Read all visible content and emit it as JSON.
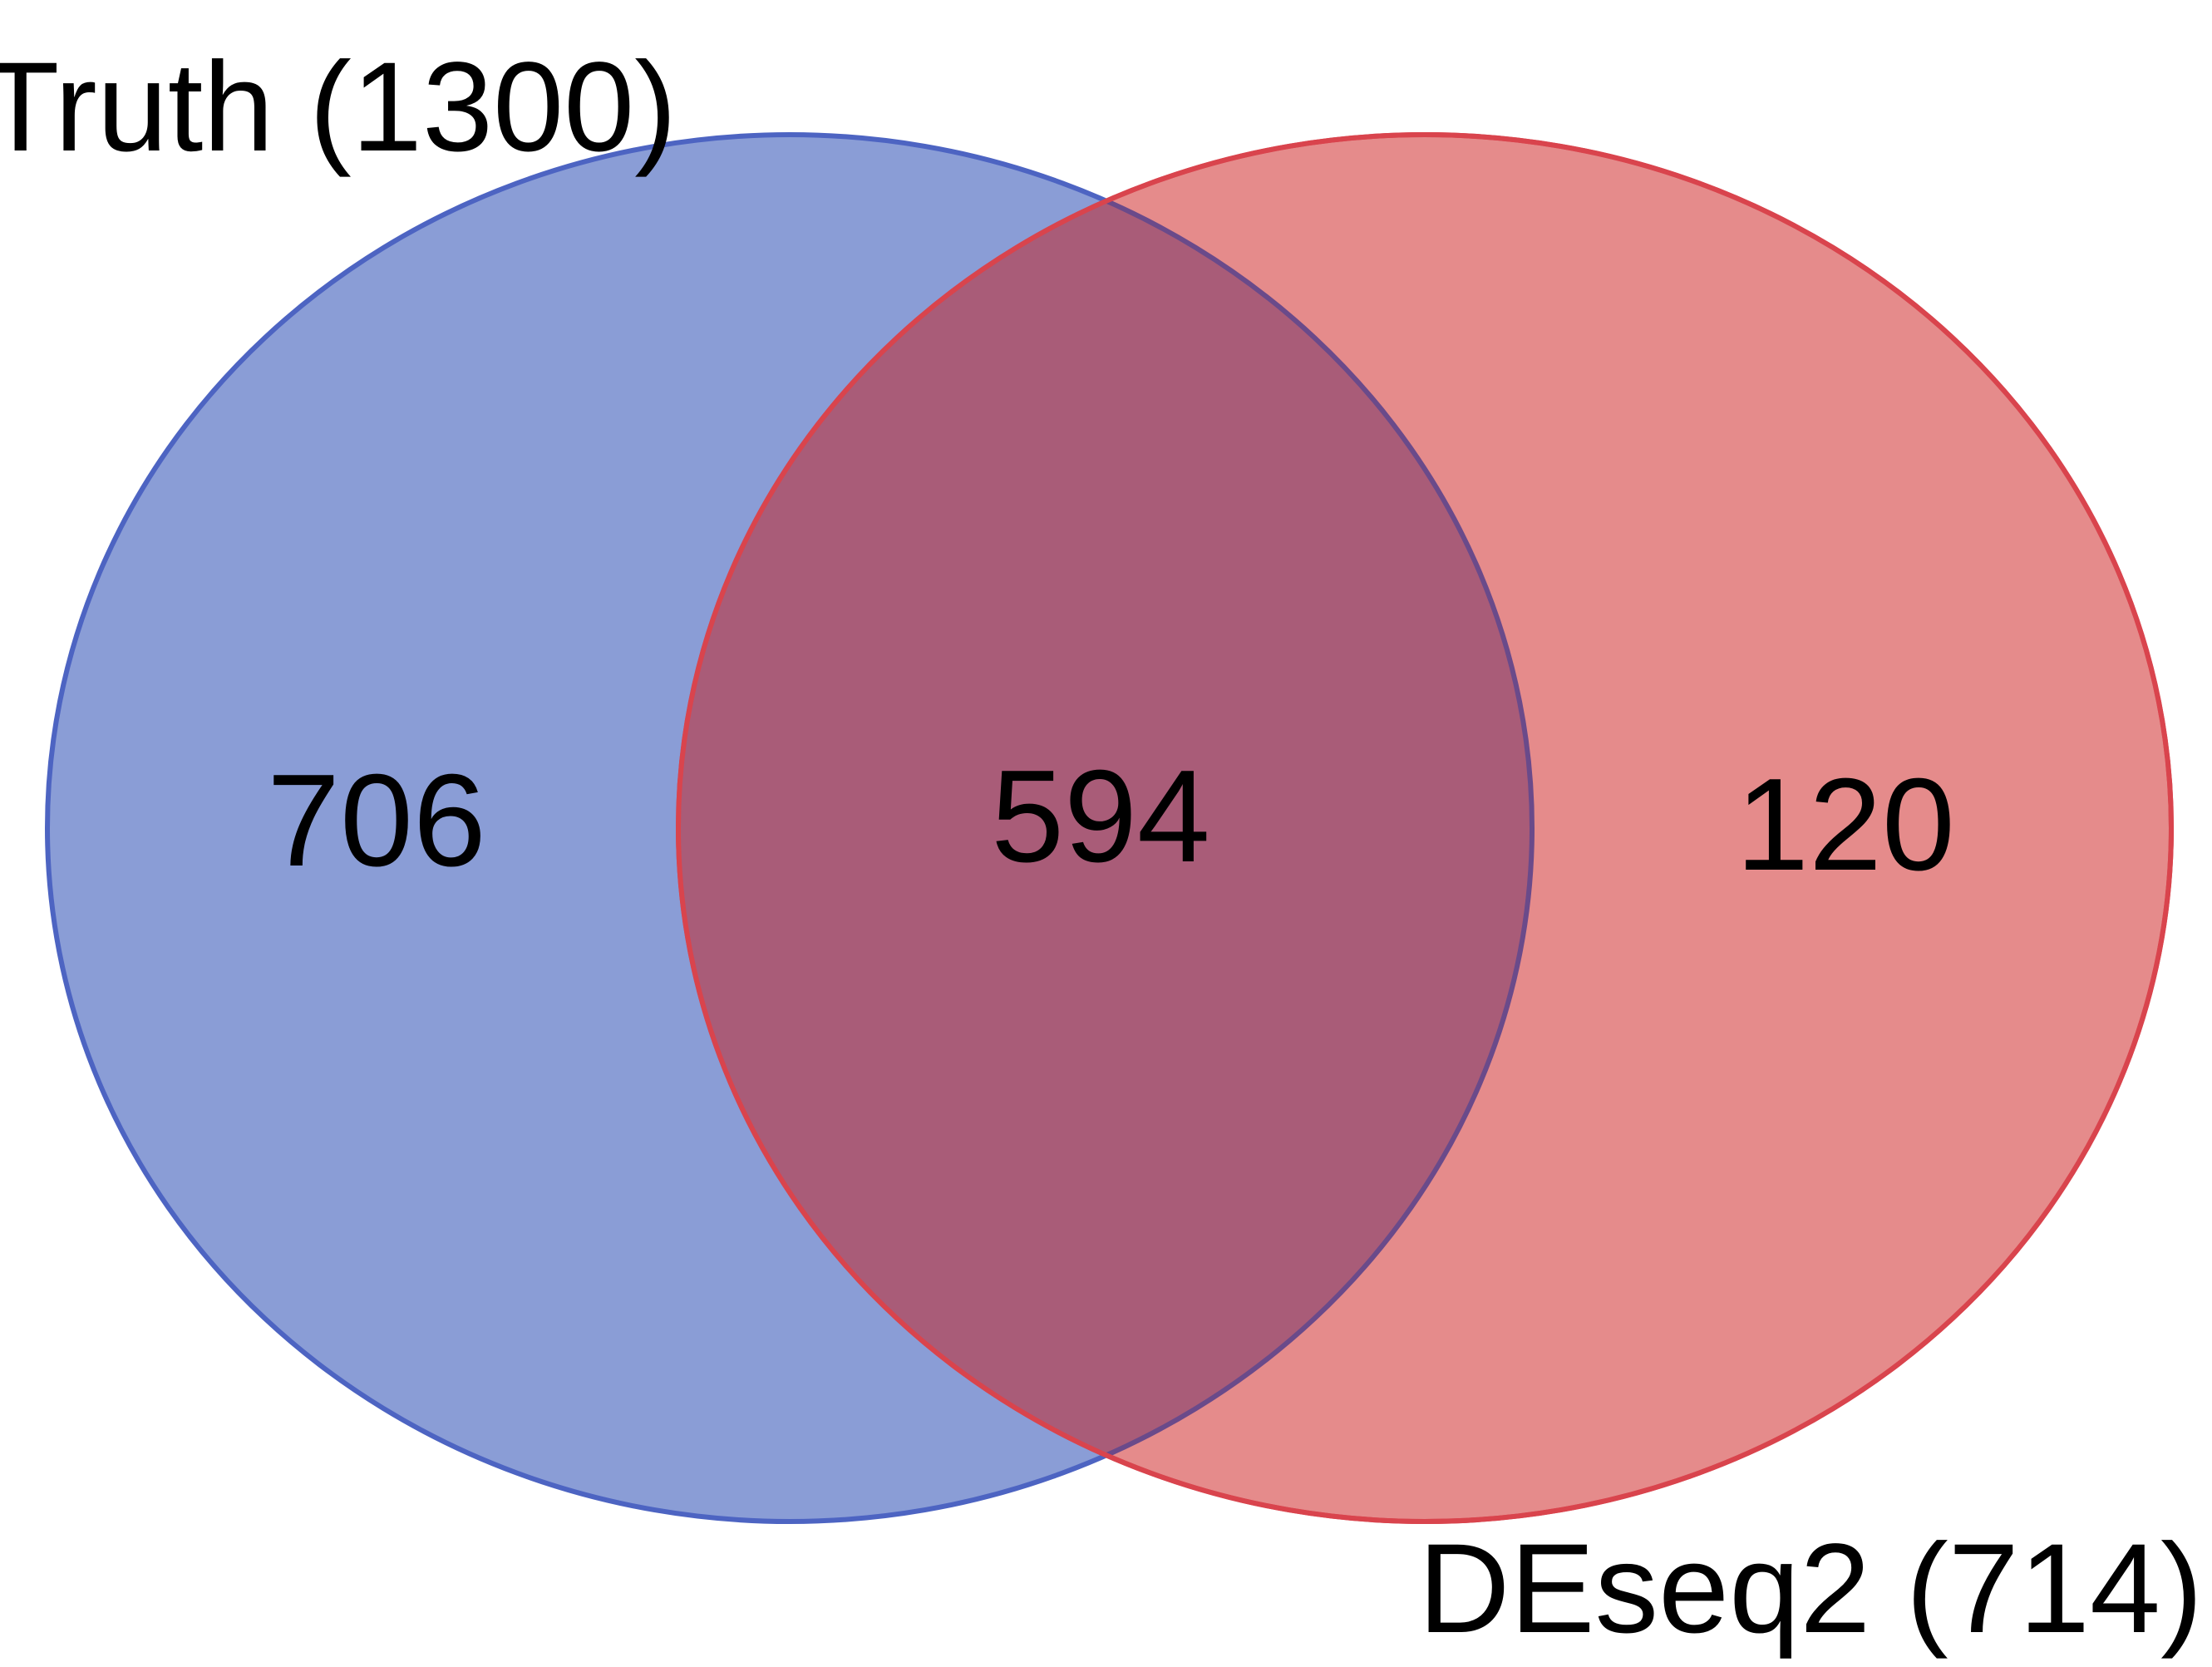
{
  "sets": [
    {
      "label": "Truth (1300)",
      "fill": "#8a9dd6",
      "stroke": "#4d64c2"
    },
    {
      "label": "DEseq2 (714)",
      "fill": "#e58b8b",
      "stroke": "#d9444d"
    }
  ],
  "regions": {
    "only_truth": "706",
    "overlap": "594",
    "only_deseq2": "120"
  },
  "overlap_fill": "#a95c78",
  "overlap_stroke_truth": "#6a4a8a"
}
